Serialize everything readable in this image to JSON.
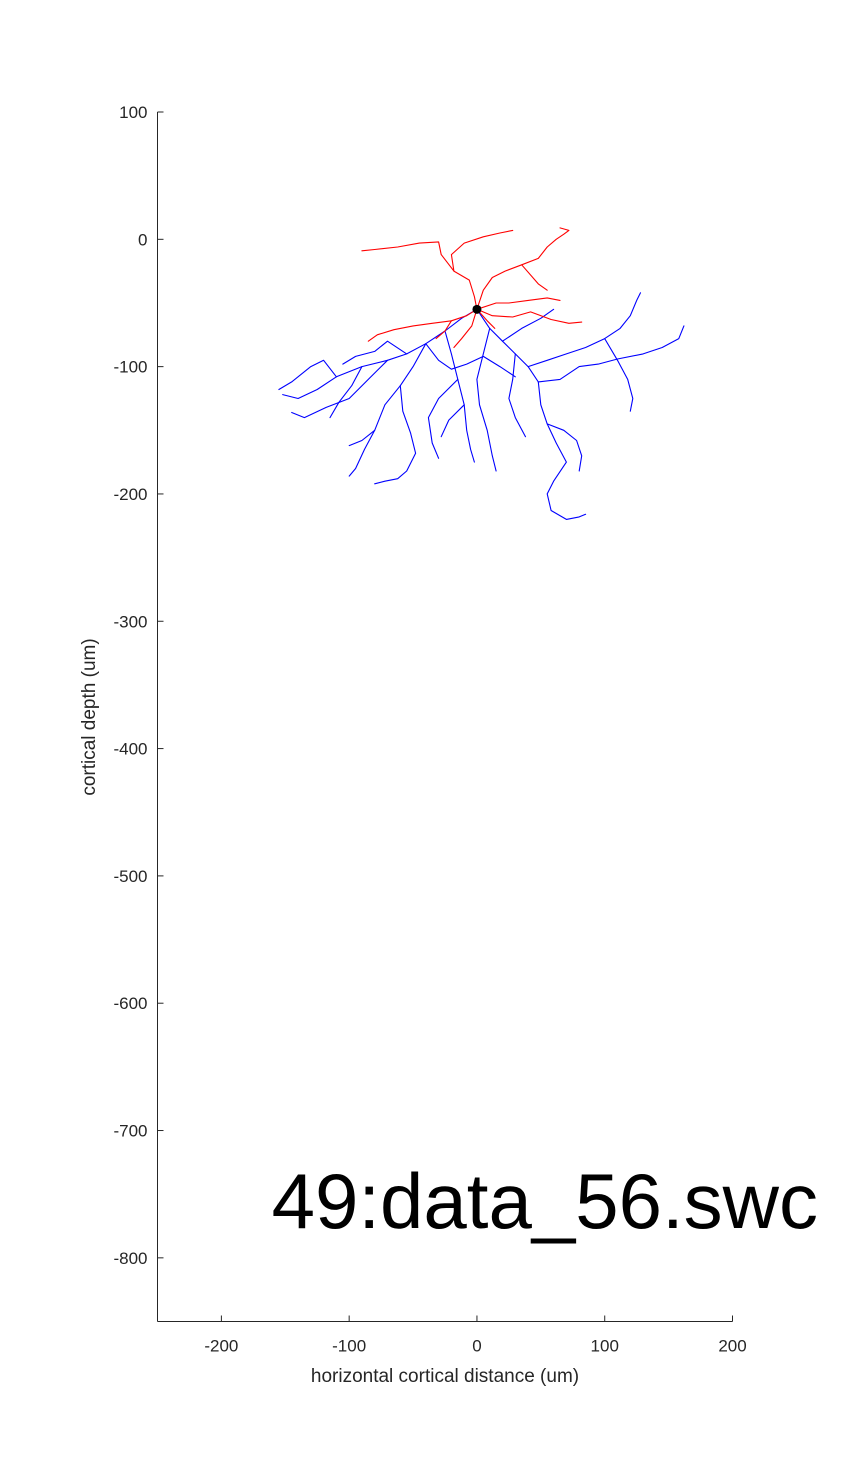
{
  "chart_data": {
    "type": "line",
    "xlabel": "horizontal cortical distance (um)",
    "ylabel": "cortical depth (um)",
    "xlim": [
      -250,
      200
    ],
    "ylim": [
      -850,
      100
    ],
    "xticks": [
      -200,
      -100,
      0,
      100,
      200
    ],
    "yticks": [
      100,
      0,
      -100,
      -200,
      -300,
      -400,
      -500,
      -600,
      -700,
      -800
    ],
    "annotation": "49:data_56.swc",
    "grid": false,
    "legend": "none",
    "soma": {
      "x": 0,
      "y": -55,
      "color": "#000000"
    },
    "series": [
      {
        "color": "#ff0000",
        "paths": [
          [
            [
              0,
              -55
            ],
            [
              -2,
              -45
            ],
            [
              -6,
              -32
            ],
            [
              -18,
              -25
            ],
            [
              -28,
              -12
            ],
            [
              -30,
              -2
            ],
            [
              -45,
              -3
            ],
            [
              -62,
              -6
            ],
            [
              -80,
              -8
            ],
            [
              -90,
              -9
            ]
          ],
          [
            [
              -18,
              -25
            ],
            [
              -20,
              -12
            ],
            [
              -10,
              -3
            ],
            [
              5,
              2
            ],
            [
              18,
              5
            ],
            [
              28,
              7
            ]
          ],
          [
            [
              0,
              -55
            ],
            [
              5,
              -40
            ],
            [
              12,
              -30
            ],
            [
              22,
              -25
            ],
            [
              35,
              -20
            ],
            [
              48,
              -15
            ],
            [
              55,
              -6
            ],
            [
              62,
              0
            ],
            [
              68,
              4
            ],
            [
              72,
              7
            ],
            [
              65,
              9
            ]
          ],
          [
            [
              35,
              -20
            ],
            [
              48,
              -35
            ],
            [
              55,
              -40
            ]
          ],
          [
            [
              0,
              -55
            ],
            [
              15,
              -50
            ],
            [
              25,
              -50
            ],
            [
              40,
              -48
            ],
            [
              55,
              -46
            ],
            [
              65,
              -48
            ]
          ],
          [
            [
              0,
              -55
            ],
            [
              12,
              -60
            ],
            [
              28,
              -61
            ],
            [
              42,
              -57
            ],
            [
              58,
              -63
            ],
            [
              72,
              -66
            ],
            [
              82,
              -65
            ]
          ],
          [
            [
              0,
              -55
            ],
            [
              -8,
              -60
            ],
            [
              -20,
              -64
            ],
            [
              -35,
              -66
            ],
            [
              -50,
              -68
            ],
            [
              -65,
              -71
            ],
            [
              -78,
              -75
            ],
            [
              -85,
              -80
            ]
          ],
          [
            [
              -20,
              -64
            ],
            [
              -25,
              -72
            ],
            [
              -32,
              -78
            ]
          ],
          [
            [
              0,
              -55
            ],
            [
              -4,
              -68
            ],
            [
              -12,
              -78
            ],
            [
              -18,
              -85
            ]
          ],
          [
            [
              0,
              -55
            ],
            [
              8,
              -64
            ],
            [
              14,
              -70
            ]
          ]
        ]
      },
      {
        "color": "#0000ff",
        "paths": [
          [
            [
              0,
              -55
            ],
            [
              -12,
              -62
            ],
            [
              -25,
              -72
            ],
            [
              -40,
              -82
            ],
            [
              -55,
              -90
            ],
            [
              -70,
              -95
            ],
            [
              -90,
              -100
            ],
            [
              -110,
              -108
            ],
            [
              -125,
              -118
            ],
            [
              -140,
              -125
            ],
            [
              -152,
              -122
            ]
          ],
          [
            [
              -70,
              -95
            ],
            [
              -85,
              -110
            ],
            [
              -100,
              -125
            ],
            [
              -118,
              -132
            ],
            [
              -135,
              -140
            ],
            [
              -145,
              -136
            ]
          ],
          [
            [
              -40,
              -82
            ],
            [
              -50,
              -100
            ],
            [
              -60,
              -115
            ],
            [
              -72,
              -130
            ],
            [
              -80,
              -150
            ],
            [
              -88,
              -165
            ],
            [
              -95,
              -180
            ],
            [
              -100,
              -186
            ]
          ],
          [
            [
              -80,
              -150
            ],
            [
              -90,
              -158
            ],
            [
              -100,
              -162
            ]
          ],
          [
            [
              -60,
              -115
            ],
            [
              -58,
              -135
            ],
            [
              -52,
              -152
            ],
            [
              -48,
              -168
            ],
            [
              -55,
              -182
            ],
            [
              -62,
              -188
            ],
            [
              -72,
              -190
            ],
            [
              -80,
              -192
            ]
          ],
          [
            [
              -25,
              -72
            ],
            [
              -20,
              -90
            ],
            [
              -15,
              -110
            ],
            [
              -10,
              -130
            ],
            [
              -8,
              -150
            ],
            [
              -5,
              -165
            ],
            [
              -2,
              -175
            ]
          ],
          [
            [
              -15,
              -110
            ],
            [
              -30,
              -125
            ],
            [
              -38,
              -140
            ],
            [
              -35,
              -160
            ],
            [
              -30,
              -172
            ]
          ],
          [
            [
              0,
              -55
            ],
            [
              10,
              -70
            ],
            [
              20,
              -80
            ],
            [
              30,
              -90
            ],
            [
              40,
              -100
            ],
            [
              48,
              -112
            ],
            [
              50,
              -130
            ],
            [
              55,
              -145
            ],
            [
              62,
              -160
            ],
            [
              70,
              -175
            ],
            [
              60,
              -190
            ],
            [
              55,
              -200
            ],
            [
              58,
              -213
            ],
            [
              70,
              -220
            ],
            [
              80,
              -218
            ],
            [
              85,
              -216
            ]
          ],
          [
            [
              40,
              -100
            ],
            [
              55,
              -95
            ],
            [
              70,
              -90
            ],
            [
              85,
              -85
            ],
            [
              100,
              -78
            ],
            [
              112,
              -70
            ],
            [
              120,
              -60
            ],
            [
              125,
              -48
            ],
            [
              128,
              -42
            ]
          ],
          [
            [
              100,
              -78
            ],
            [
              110,
              -95
            ],
            [
              118,
              -110
            ],
            [
              122,
              -125
            ],
            [
              120,
              -135
            ]
          ],
          [
            [
              20,
              -80
            ],
            [
              35,
              -70
            ],
            [
              50,
              -62
            ],
            [
              60,
              -55
            ]
          ],
          [
            [
              48,
              -112
            ],
            [
              65,
              -110
            ],
            [
              80,
              -100
            ],
            [
              95,
              -98
            ],
            [
              110,
              -94
            ],
            [
              130,
              -90
            ],
            [
              145,
              -85
            ],
            [
              158,
              -78
            ],
            [
              162,
              -68
            ]
          ],
          [
            [
              10,
              -70
            ],
            [
              5,
              -90
            ],
            [
              0,
              -110
            ],
            [
              2,
              -130
            ],
            [
              8,
              -150
            ],
            [
              12,
              -170
            ],
            [
              15,
              -182
            ]
          ],
          [
            [
              55,
              -145
            ],
            [
              68,
              -150
            ],
            [
              78,
              -158
            ],
            [
              82,
              -170
            ],
            [
              80,
              -182
            ]
          ],
          [
            [
              -55,
              -90
            ],
            [
              -70,
              -80
            ],
            [
              -80,
              -88
            ],
            [
              -95,
              -92
            ],
            [
              -105,
              -98
            ]
          ],
          [
            [
              -90,
              -100
            ],
            [
              -98,
              -115
            ],
            [
              -108,
              -128
            ],
            [
              -115,
              -140
            ]
          ],
          [
            [
              -10,
              -130
            ],
            [
              -22,
              -142
            ],
            [
              -28,
              -155
            ]
          ],
          [
            [
              30,
              -90
            ],
            [
              28,
              -110
            ],
            [
              25,
              -125
            ],
            [
              30,
              -140
            ],
            [
              38,
              -155
            ]
          ],
          [
            [
              -40,
              -82
            ],
            [
              -30,
              -95
            ],
            [
              -20,
              -102
            ],
            [
              -8,
              -98
            ],
            [
              5,
              -92
            ],
            [
              18,
              -100
            ],
            [
              30,
              -108
            ]
          ],
          [
            [
              -110,
              -108
            ],
            [
              -120,
              -95
            ],
            [
              -130,
              -100
            ],
            [
              -145,
              -112
            ],
            [
              -155,
              -118
            ]
          ]
        ]
      }
    ]
  }
}
